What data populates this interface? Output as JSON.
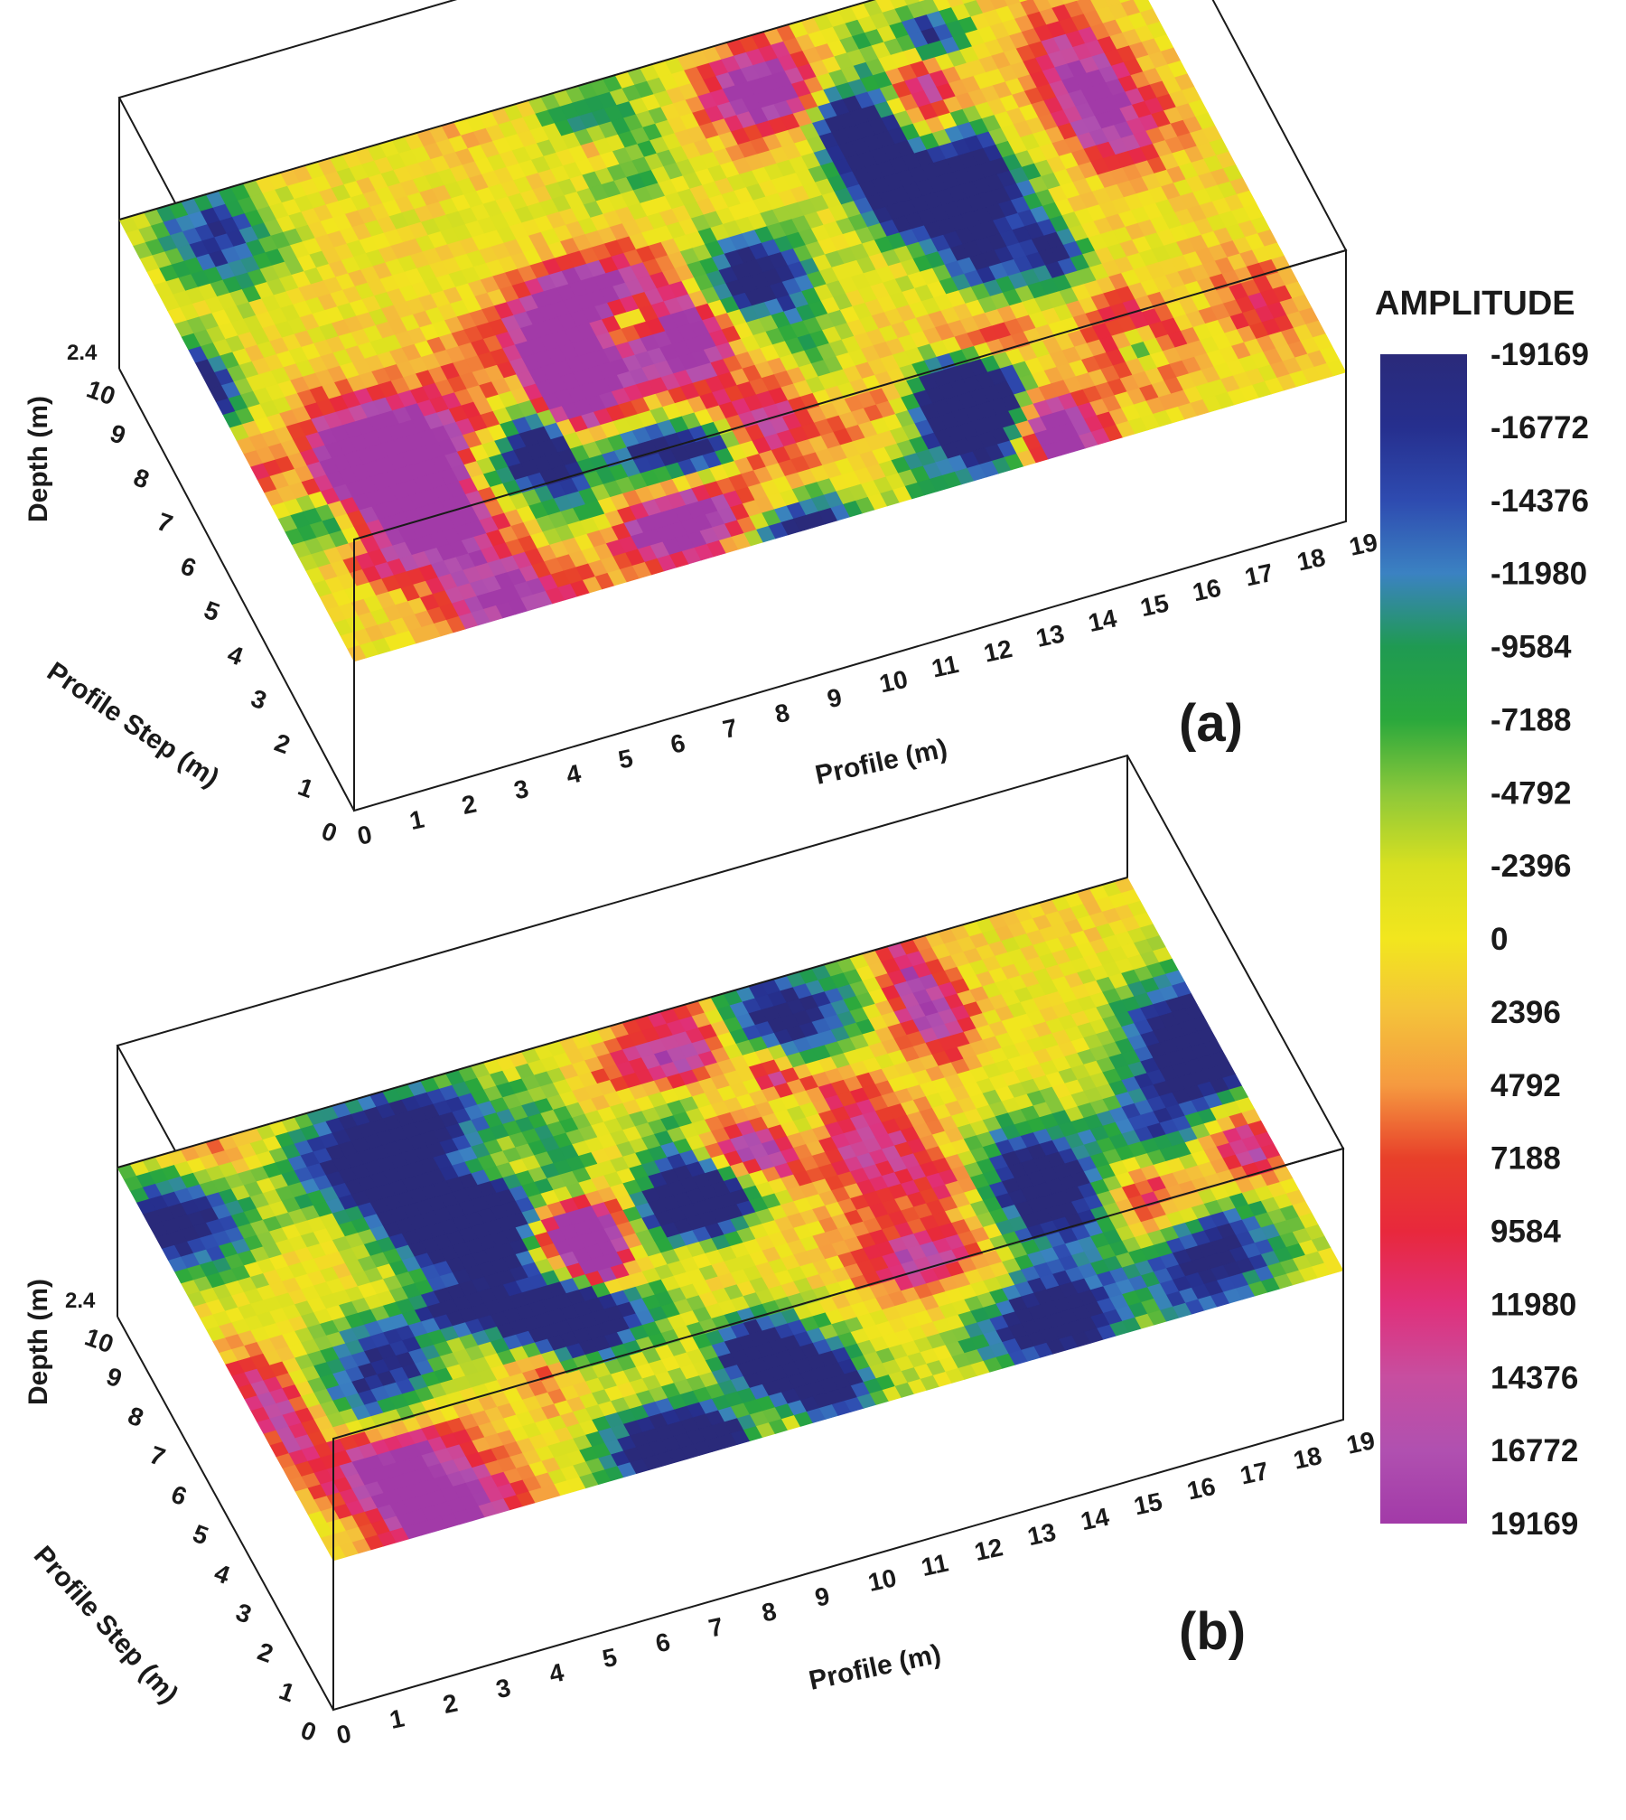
{
  "chart_data": {
    "type": "heatmap",
    "colorbar": {
      "title": "AMPLITUDE",
      "ticks": [
        "-19169",
        "-16772",
        "-14376",
        "-11980",
        "-9584",
        "-7188",
        "-4792",
        "-2396",
        "0",
        "2396",
        "4792",
        "7188",
        "9584",
        "11980",
        "14376",
        "16772",
        "19169"
      ],
      "range": [
        -19169,
        19169
      ],
      "colors": [
        "#2a2a7a",
        "#262f8e",
        "#2e4bb0",
        "#3b82c2",
        "#1f9a52",
        "#2aa83c",
        "#8cc83a",
        "#d8e020",
        "#f2e61e",
        "#f4c23a",
        "#f59a40",
        "#e8402a",
        "#e8283c",
        "#e0307a",
        "#c74ea0",
        "#b050b0",
        "#a23aa8"
      ]
    },
    "panels": [
      {
        "label": "(a)",
        "xlabel": "Profile (m)",
        "ylabel": "Profile Step (m)",
        "zlabel": "Depth (m)",
        "x_ticks": [
          "0",
          "1",
          "2",
          "3",
          "4",
          "5",
          "6",
          "7",
          "8",
          "9",
          "10",
          "11",
          "12",
          "13",
          "14",
          "15",
          "16",
          "17",
          "18",
          "19"
        ],
        "y_ticks": [
          "0",
          "1",
          "2",
          "3",
          "4",
          "5",
          "6",
          "7",
          "8",
          "9",
          "10"
        ],
        "depth_tick": "2.4",
        "xlim": [
          0,
          19
        ],
        "ylim": [
          0,
          10
        ],
        "seed": 7
      },
      {
        "label": "(b)",
        "xlabel": "Profile (m)",
        "ylabel": "Profile Step (m)",
        "zlabel": "Depth (m)",
        "x_ticks": [
          "0",
          "1",
          "2",
          "3",
          "4",
          "5",
          "6",
          "7",
          "8",
          "9",
          "10",
          "11",
          "12",
          "13",
          "14",
          "15",
          "16",
          "17",
          "18",
          "19"
        ],
        "y_ticks": [
          "0",
          "1",
          "2",
          "3",
          "4",
          "5",
          "6",
          "7",
          "8",
          "9",
          "10"
        ],
        "depth_tick": "2.4",
        "xlim": [
          0,
          19
        ],
        "ylim": [
          0,
          10
        ],
        "seed": 23
      }
    ]
  }
}
